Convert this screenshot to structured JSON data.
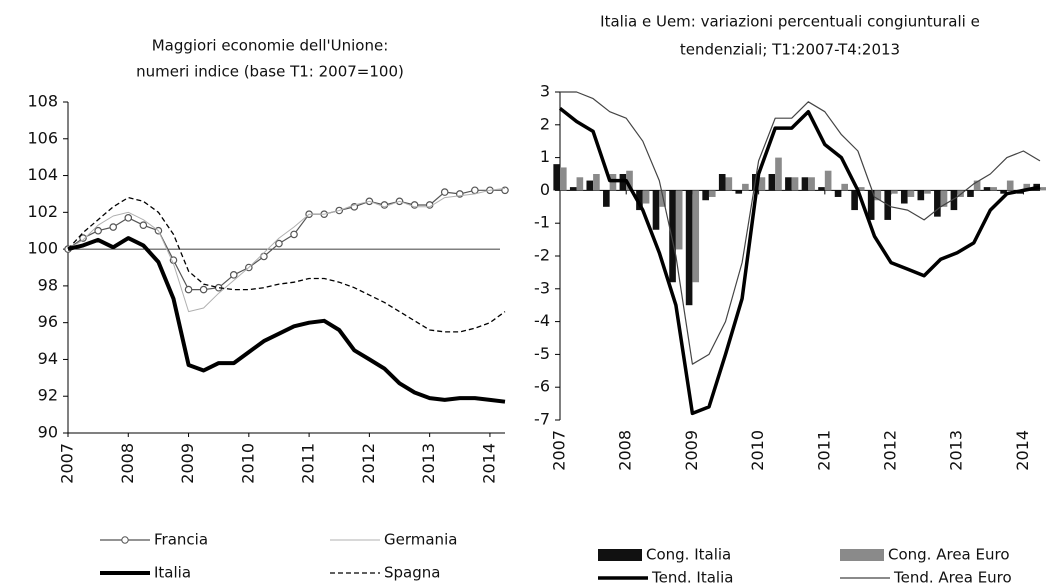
{
  "chart_data": [
    {
      "type": "line",
      "title": [
        "Maggiori economie dell'Unione:",
        "numeri indice (base T1: 2007=100)"
      ],
      "x": [
        2007,
        2007.25,
        2007.5,
        2007.75,
        2008,
        2008.25,
        2008.5,
        2008.75,
        2009,
        2009.25,
        2009.5,
        2009.75,
        2010,
        2010.25,
        2010.5,
        2010.75,
        2011,
        2011.25,
        2011.5,
        2011.75,
        2012,
        2012.25,
        2012.5,
        2012.75,
        2013,
        2013.25,
        2013.5,
        2013.75,
        2014,
        2014.25
      ],
      "xlim": [
        2007,
        2014.25
      ],
      "xticks": [
        2007,
        2008,
        2009,
        2010,
        2011,
        2012,
        2013,
        2014
      ],
      "ylim": [
        90,
        108
      ],
      "yticks": [
        90,
        92,
        94,
        96,
        98,
        100,
        102,
        104,
        106,
        108
      ],
      "reference_line": 100,
      "series": [
        {
          "name": "Francia",
          "color": "#555555",
          "kind": "line",
          "width": 1.2,
          "marker": "circle",
          "values": [
            100,
            100.6,
            101.0,
            101.2,
            101.7,
            101.3,
            101.0,
            99.4,
            97.8,
            97.8,
            97.9,
            98.6,
            99.0,
            99.6,
            100.3,
            100.8,
            101.9,
            101.9,
            102.1,
            102.3,
            102.6,
            102.4,
            102.6,
            102.4,
            102.4,
            103.1,
            103.0,
            103.2,
            103.2,
            103.2
          ]
        },
        {
          "name": "Germania",
          "color": "#b0b0b0",
          "kind": "line",
          "width": 1,
          "values": [
            100,
            100.5,
            101.3,
            101.8,
            102.0,
            101.6,
            101.0,
            99.2,
            96.6,
            96.8,
            97.6,
            98.3,
            99.0,
            99.8,
            100.6,
            101.2,
            101.9,
            101.9,
            102.1,
            102.4,
            102.6,
            102.3,
            102.6,
            102.3,
            102.3,
            102.8,
            102.9,
            103.0,
            103.2,
            103.3
          ]
        },
        {
          "name": "Italia",
          "color": "#000000",
          "kind": "line",
          "width": 4,
          "values": [
            100,
            100.2,
            100.5,
            100.1,
            100.6,
            100.2,
            99.3,
            97.3,
            93.7,
            93.4,
            93.8,
            93.8,
            94.4,
            95.0,
            95.4,
            95.8,
            96.0,
            96.1,
            95.6,
            94.5,
            94.0,
            93.5,
            92.7,
            92.2,
            91.9,
            91.8,
            91.9,
            91.9,
            91.8,
            91.7
          ]
        },
        {
          "name": "Spagna",
          "color": "#000000",
          "kind": "line",
          "width": 1.3,
          "dash": true,
          "values": [
            100,
            100.9,
            101.6,
            102.3,
            102.8,
            102.6,
            102.0,
            100.8,
            98.8,
            98.1,
            97.9,
            97.8,
            97.8,
            97.9,
            98.1,
            98.2,
            98.4,
            98.4,
            98.2,
            97.9,
            97.5,
            97.1,
            96.6,
            96.1,
            95.6,
            95.5,
            95.5,
            95.7,
            96.0,
            96.6
          ]
        }
      ]
    },
    {
      "type": "line",
      "title": [
        "Italia e Uem: variazioni percentuali congiunturali e",
        "tendenziali; T1:2007-T4:2013"
      ],
      "x": [
        2007,
        2007.25,
        2007.5,
        2007.75,
        2008,
        2008.25,
        2008.5,
        2008.75,
        2009,
        2009.25,
        2009.5,
        2009.75,
        2010,
        2010.25,
        2010.5,
        2010.75,
        2011,
        2011.25,
        2011.5,
        2011.75,
        2012,
        2012.25,
        2012.5,
        2012.75,
        2013,
        2013.25,
        2013.5,
        2013.75,
        2014,
        2014.25
      ],
      "xlim": [
        2007,
        2014.25
      ],
      "xticks": [
        2007,
        2008,
        2009,
        2010,
        2011,
        2012,
        2013,
        2014
      ],
      "ylim": [
        -7,
        3
      ],
      "yticks": [
        -7,
        -6,
        -5,
        -4,
        -3,
        -2,
        -1,
        0,
        1,
        2,
        3
      ],
      "series": [
        {
          "name": "Cong. Italia",
          "color": "#111111",
          "kind": "bar",
          "values": [
            0.8,
            0.1,
            0.3,
            -0.5,
            0.5,
            -0.6,
            -1.2,
            -2.8,
            -3.5,
            -0.3,
            0.5,
            -0.1,
            0.5,
            0.5,
            0.4,
            0.4,
            0.1,
            -0.2,
            -0.6,
            -0.9,
            -0.9,
            -0.4,
            -0.3,
            -0.8,
            -0.6,
            -0.2,
            0.1,
            -0.1,
            -0.1,
            0.2
          ]
        },
        {
          "name": "Cong. Area Euro",
          "color": "#8a8a8a",
          "kind": "bar",
          "values": [
            0.7,
            0.4,
            0.5,
            0.5,
            0.6,
            -0.4,
            -0.5,
            -1.8,
            -2.8,
            -0.2,
            0.4,
            0.2,
            0.4,
            1.0,
            0.4,
            0.4,
            0.6,
            0.2,
            0.1,
            -0.3,
            -0.1,
            -0.2,
            -0.1,
            -0.5,
            -0.2,
            0.3,
            0.1,
            0.3,
            0.2,
            0.1
          ]
        },
        {
          "name": "Tend. Italia",
          "color": "#000000",
          "kind": "line",
          "width": 3.5,
          "values": [
            2.5,
            2.1,
            1.8,
            0.3,
            0.3,
            -0.6,
            -1.9,
            -3.5,
            -6.8,
            -6.6,
            -5.0,
            -3.3,
            0.5,
            1.9,
            1.9,
            2.4,
            1.4,
            1.0,
            0.0,
            -1.4,
            -2.2,
            -2.4,
            -2.6,
            -2.1,
            -1.9,
            -1.6,
            -0.6,
            -0.1,
            0.0,
            0.1
          ]
        },
        {
          "name": "Tend. Area Euro",
          "color": "#444444",
          "kind": "line",
          "width": 1.2,
          "values": [
            3.0,
            3.0,
            2.8,
            2.4,
            2.2,
            1.5,
            0.3,
            -2.0,
            -5.3,
            -5.0,
            -4.0,
            -2.2,
            0.9,
            2.2,
            2.2,
            2.7,
            2.4,
            1.7,
            1.2,
            -0.2,
            -0.5,
            -0.6,
            -0.9,
            -0.5,
            -0.2,
            0.2,
            0.5,
            1.0,
            1.2,
            0.9
          ]
        }
      ]
    }
  ]
}
